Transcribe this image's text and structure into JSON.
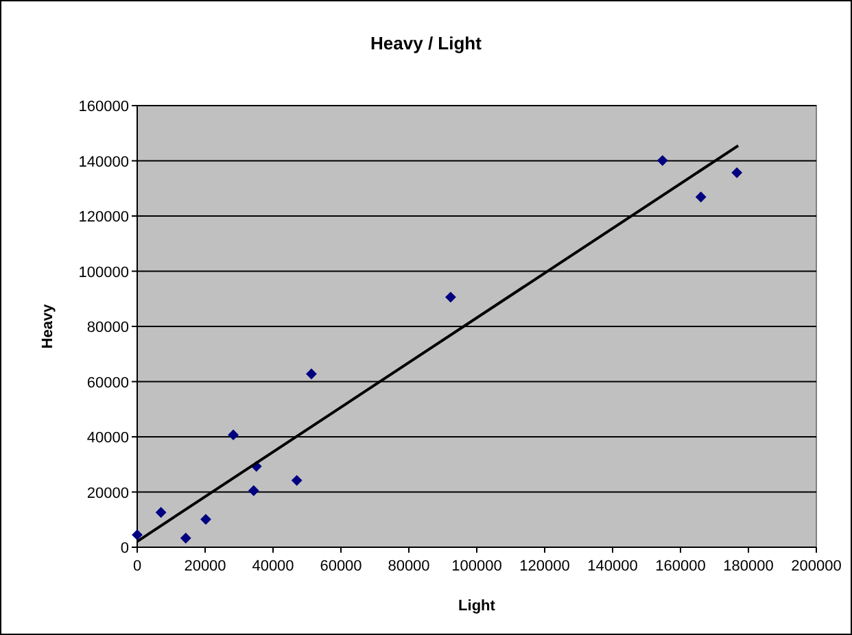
{
  "chart_data": {
    "type": "scatter",
    "title": "Heavy / Light",
    "xlabel": "Light",
    "ylabel": "Heavy",
    "xlim": [
      0,
      200000
    ],
    "xticks": [
      0,
      20000,
      40000,
      60000,
      80000,
      100000,
      120000,
      140000,
      160000,
      180000,
      200000
    ],
    "ylim": [
      0,
      160000
    ],
    "yticks": [
      0,
      20000,
      40000,
      60000,
      80000,
      100000,
      120000,
      140000,
      160000
    ],
    "grid": "y",
    "series": [
      {
        "marker": "diamond",
        "color": "#000080",
        "x": [
          0,
          7000,
          14300,
          20200,
          28300,
          35100,
          34300,
          47000,
          51300,
          92300,
          154700,
          166000,
          176600
        ],
        "values": [
          4500,
          12600,
          3300,
          10100,
          40700,
          29300,
          20500,
          24200,
          62800,
          90600,
          140100,
          126900,
          135700
        ]
      },
      {
        "type": "line",
        "color": "#000000",
        "x": [
          0,
          177000
        ],
        "values": [
          2100,
          145500
        ]
      }
    ]
  }
}
